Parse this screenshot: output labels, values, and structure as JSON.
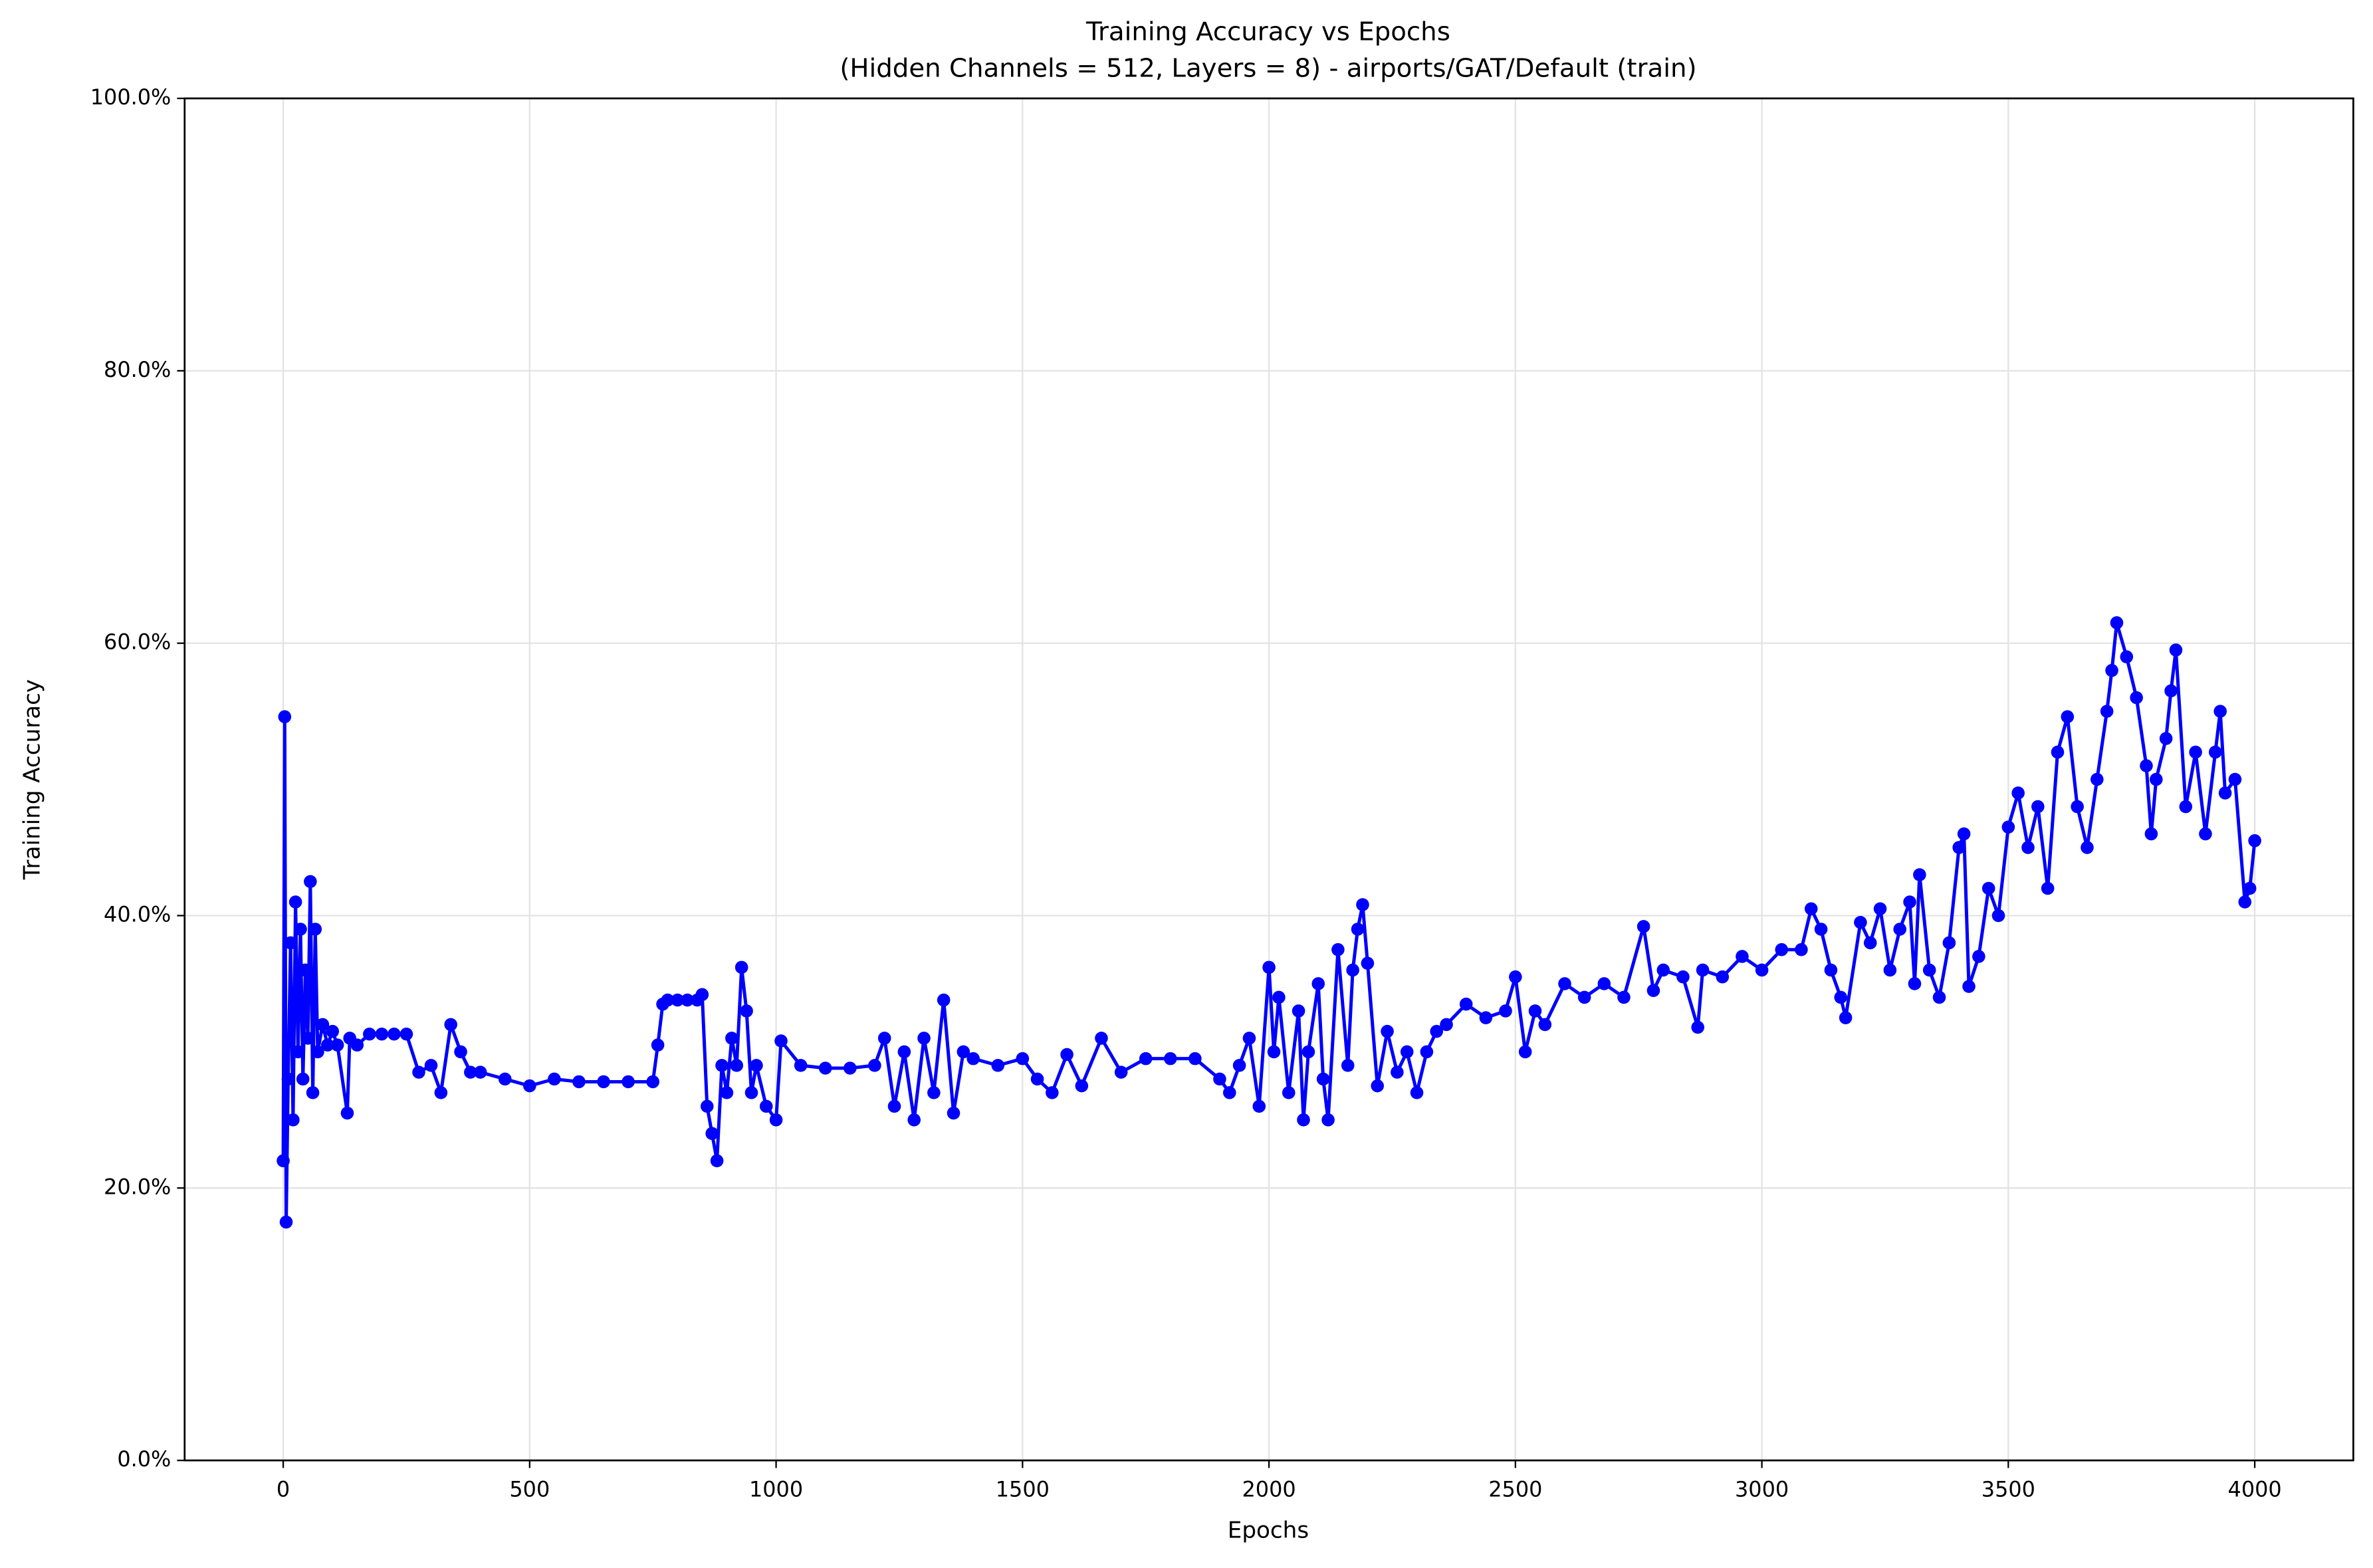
{
  "chart_data": {
    "type": "line",
    "title": "Training Accuracy vs Epochs",
    "subtitle": "(Hidden Channels = 512, Layers = 8) - airports/GAT/Default (train)",
    "x_label": "Epochs",
    "y_label": "Training Accuracy",
    "xlim": [
      -200,
      4200
    ],
    "xticks": [
      0,
      500,
      1000,
      1500,
      2000,
      2500,
      3000,
      3500,
      4000
    ],
    "ylim": [
      0,
      100
    ],
    "yticks": [
      {
        "value": 0,
        "label": "0.0%"
      },
      {
        "value": 20,
        "label": "20.0%"
      },
      {
        "value": 40,
        "label": "40.0%"
      },
      {
        "value": 60,
        "label": "60.0%"
      },
      {
        "value": 80,
        "label": "80.0%"
      },
      {
        "value": 100,
        "label": "100.0%"
      }
    ],
    "grid": true,
    "x": [
      0,
      3,
      6,
      10,
      15,
      20,
      25,
      30,
      35,
      40,
      45,
      50,
      55,
      60,
      65,
      70,
      80,
      90,
      100,
      110,
      130,
      135,
      150,
      175,
      200,
      225,
      250,
      275,
      300,
      320,
      340,
      360,
      380,
      400,
      450,
      500,
      550,
      600,
      650,
      700,
      750,
      760,
      770,
      780,
      800,
      820,
      840,
      850,
      860,
      870,
      880,
      890,
      900,
      910,
      920,
      930,
      940,
      950,
      960,
      980,
      1000,
      1010,
      1050,
      1100,
      1150,
      1200,
      1220,
      1240,
      1260,
      1280,
      1300,
      1320,
      1340,
      1360,
      1380,
      1400,
      1450,
      1500,
      1530,
      1560,
      1590,
      1620,
      1660,
      1700,
      1750,
      1800,
      1850,
      1900,
      1920,
      1940,
      1960,
      1980,
      2000,
      2010,
      2020,
      2040,
      2060,
      2070,
      2080,
      2100,
      2110,
      2120,
      2140,
      2160,
      2170,
      2180,
      2190,
      2200,
      2220,
      2240,
      2260,
      2280,
      2300,
      2320,
      2340,
      2360,
      2400,
      2440,
      2480,
      2500,
      2520,
      2540,
      2560,
      2600,
      2640,
      2680,
      2720,
      2760,
      2780,
      2800,
      2840,
      2870,
      2880,
      2920,
      2960,
      3000,
      3040,
      3080,
      3100,
      3120,
      3140,
      3160,
      3170,
      3200,
      3220,
      3240,
      3260,
      3280,
      3300,
      3310,
      3320,
      3340,
      3360,
      3380,
      3400,
      3410,
      3420,
      3440,
      3460,
      3480,
      3500,
      3520,
      3540,
      3560,
      3580,
      3600,
      3620,
      3640,
      3660,
      3680,
      3700,
      3710,
      3720,
      3740,
      3760,
      3780,
      3790,
      3800,
      3820,
      3830,
      3840,
      3860,
      3880,
      3900,
      3920,
      3930,
      3940,
      3960,
      3980,
      3990,
      4000
    ],
    "series": [
      {
        "color": "#0000ff",
        "values": [
          22.0,
          54.6,
          17.5,
          28,
          38,
          25,
          41,
          30,
          39,
          28,
          36,
          31,
          42.5,
          27,
          39,
          30,
          32,
          30.5,
          31.5,
          30.5,
          25.5,
          31,
          30.5,
          31.3,
          31.3,
          31.3,
          31.3,
          28.5,
          29,
          27,
          32,
          30,
          28.5,
          28.5,
          28,
          27.5,
          28,
          27.8,
          27.8,
          27.8,
          27.8,
          30.5,
          33.5,
          33.8,
          33.8,
          33.8,
          33.8,
          34.2,
          26,
          24,
          22,
          29,
          27,
          31,
          29,
          36.2,
          33,
          27,
          29,
          26,
          25,
          30.8,
          29,
          28.8,
          28.8,
          29,
          31,
          26,
          30,
          25,
          31,
          27,
          33.8,
          25.5,
          30,
          29.5,
          29,
          29.5,
          28,
          27,
          29.8,
          27.5,
          31,
          28.5,
          29.5,
          29.5,
          29.5,
          28,
          27,
          29,
          31,
          26,
          36.2,
          30,
          34,
          27,
          33,
          25,
          30,
          35,
          28,
          25,
          37.5,
          29,
          36,
          39,
          40.8,
          36.5,
          27.5,
          31.5,
          28.5,
          30,
          27,
          30,
          31.5,
          32,
          33.5,
          32.5,
          33,
          35.5,
          30,
          33,
          32,
          35,
          34,
          35,
          34,
          39.2,
          34.5,
          36,
          35.5,
          31.8,
          36,
          35.5,
          37,
          36,
          37.5,
          37.5,
          40.5,
          39,
          36,
          34,
          32.5,
          39.5,
          38,
          40.5,
          36,
          39,
          41,
          35,
          43,
          36,
          34,
          38,
          45,
          46,
          34.8,
          37,
          42,
          40,
          46.5,
          49,
          45,
          48,
          42,
          52,
          54.6,
          48,
          45,
          50,
          55,
          58,
          61.5,
          59,
          56,
          51,
          46,
          50,
          53,
          56.5,
          59.5,
          48,
          52,
          46,
          52,
          55,
          49,
          50,
          41,
          42,
          45.5
        ]
      }
    ]
  }
}
